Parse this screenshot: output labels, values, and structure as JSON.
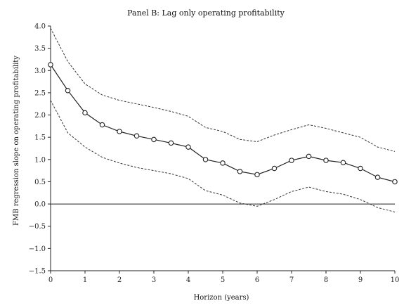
{
  "chart_data": {
    "type": "line",
    "title": "Panel B: Lag only operating profitability",
    "xlabel": "Horizon (years)",
    "ylabel": "FMB regression slope on operating profitability",
    "xlim": [
      0,
      10
    ],
    "ylim": [
      -1.5,
      4.0
    ],
    "x_ticks": [
      0,
      1,
      2,
      3,
      4,
      5,
      6,
      7,
      8,
      9,
      10
    ],
    "y_ticks": [
      -1.5,
      -1.0,
      -0.5,
      0.0,
      0.5,
      1.0,
      1.5,
      2.0,
      2.5,
      3.0,
      3.5,
      4.0
    ],
    "x_tick_labels": [
      "0",
      "1",
      "2",
      "3",
      "4",
      "5",
      "6",
      "7",
      "8",
      "9",
      "10"
    ],
    "y_tick_labels": [
      "−1.5",
      "−1.0",
      "−0.5",
      "0.0",
      "0.5",
      "1.0",
      "1.5",
      "2.0",
      "2.5",
      "3.0",
      "3.5",
      "4.0"
    ],
    "grid": false,
    "zero_line": true,
    "x": [
      0,
      0.5,
      1,
      1.5,
      2,
      2.5,
      3,
      3.5,
      4,
      4.5,
      5,
      5.5,
      6,
      6.5,
      7,
      7.5,
      8,
      8.5,
      9,
      9.5,
      10
    ],
    "series": [
      {
        "style": "solid-markers",
        "values": [
          3.13,
          2.55,
          2.05,
          1.78,
          1.63,
          1.53,
          1.45,
          1.37,
          1.28,
          1.0,
          0.92,
          0.73,
          0.66,
          0.8,
          0.98,
          1.07,
          0.98,
          0.93,
          0.8,
          0.6,
          0.5
        ]
      },
      {
        "style": "dashed",
        "values": [
          3.95,
          3.2,
          2.7,
          2.45,
          2.33,
          2.25,
          2.17,
          2.08,
          1.97,
          1.72,
          1.63,
          1.45,
          1.4,
          1.55,
          1.67,
          1.78,
          1.7,
          1.6,
          1.5,
          1.28,
          1.18
        ]
      },
      {
        "style": "dashed",
        "values": [
          2.33,
          1.6,
          1.28,
          1.05,
          0.92,
          0.82,
          0.75,
          0.68,
          0.57,
          0.3,
          0.2,
          0.02,
          -0.05,
          0.1,
          0.28,
          0.38,
          0.28,
          0.22,
          0.1,
          -0.08,
          -0.18
        ]
      }
    ],
    "colors": {
      "main": "#222222",
      "band": "#333333",
      "axis": "#222222"
    }
  }
}
